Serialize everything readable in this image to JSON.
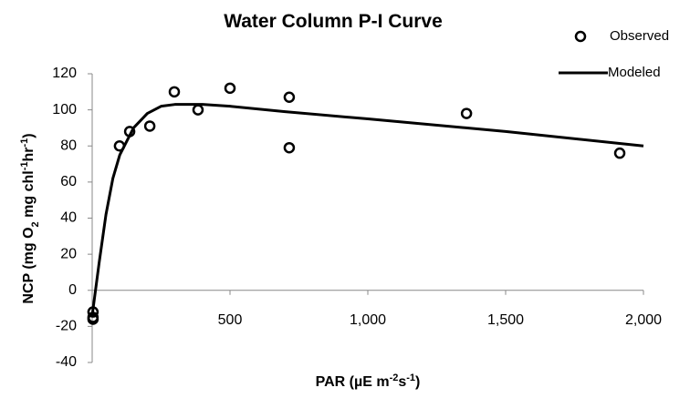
{
  "chart_data": {
    "type": "scatter",
    "title": "Water Column  P-I Curve",
    "x_label": [
      "PAR (µE m",
      "-2",
      "s",
      "-1",
      ")"
    ],
    "y_label": [
      "NCP  (mg O",
      "2",
      " mg chl",
      "-1",
      "hr",
      "-1",
      ")"
    ],
    "xlim": [
      0,
      2000
    ],
    "xticks": [
      {
        "value": 500,
        "label": "500"
      },
      {
        "value": 1000,
        "label": "1,000"
      },
      {
        "value": 1500,
        "label": "1,500"
      },
      {
        "value": 2000,
        "label": "2,000"
      }
    ],
    "ylim": [
      -40,
      120
    ],
    "yticks": [
      -40,
      -20,
      0,
      20,
      40,
      60,
      80,
      100,
      120
    ],
    "grid": false,
    "legend": "top-right",
    "series": [
      {
        "name": "Observed",
        "type": "scatter",
        "color": "#000000",
        "x": [
          3,
          3,
          3,
          99,
          136,
          209,
          298,
          384,
          500,
          715,
          715,
          1358,
          1914
        ],
        "values": [
          -12,
          -15,
          -16,
          80,
          88,
          91,
          110,
          100,
          112,
          107,
          79,
          98,
          76
        ]
      },
      {
        "name": "Modeled",
        "type": "line",
        "color": "#000000",
        "x": [
          0,
          25,
          50,
          75,
          100,
          150,
          200,
          250,
          300,
          400,
          500,
          700,
          1000,
          1500,
          2000
        ],
        "values": [
          -14,
          15,
          42,
          62,
          75,
          90,
          98,
          102,
          103,
          103,
          102,
          99,
          95,
          88,
          80
        ]
      }
    ]
  }
}
